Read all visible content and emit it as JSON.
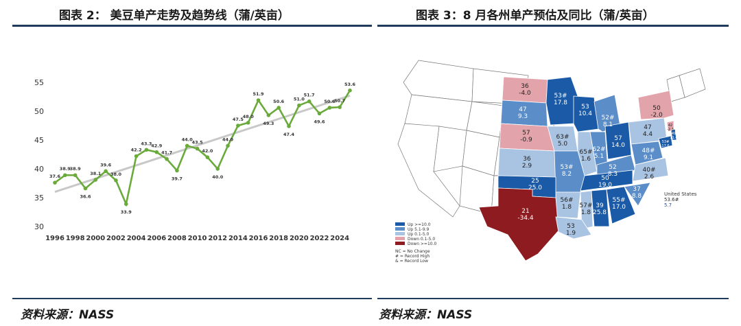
{
  "left_panel": {
    "title": "图表 2： 美豆单产走势及趋势线（蒲/英亩）",
    "source": "资料来源：NASS"
  },
  "right_panel": {
    "title": "图表 3：8 月各州单产预估及同比（蒲/英亩）",
    "source": "资料来源：NASS",
    "legend": [
      {
        "label": "Up >=10.0",
        "color": "#1b5aa6"
      },
      {
        "label": "Up 5.1-9.9",
        "color": "#5b8dc9"
      },
      {
        "label": "Up 0.1-5.0",
        "color": "#a9c3e3"
      },
      {
        "label": "Down 0.1-5.0",
        "color": "#e3a3ab"
      },
      {
        "label": "Down >=10.0",
        "color": "#8e1b1f"
      }
    ],
    "legend_notes": [
      "NC = No Change",
      "# = Record High",
      "& = Record Low"
    ],
    "national": {
      "label": "United States",
      "yield": "53.6#",
      "change": "5.7"
    },
    "states": [
      {
        "name": "North Dakota",
        "yield": "36",
        "change": "-4.0",
        "color": "#e3a3ab"
      },
      {
        "name": "Minnesota",
        "yield": "53#",
        "change": "17.8",
        "color": "#1b5aa6"
      },
      {
        "name": "Wisconsin",
        "yield": "53",
        "change": "10.4",
        "color": "#1b5aa6"
      },
      {
        "name": "Michigan",
        "yield": "52#",
        "change": "8.1",
        "color": "#5b8dc9"
      },
      {
        "name": "South Dakota",
        "yield": "47",
        "change": "9.3",
        "color": "#5b8dc9"
      },
      {
        "name": "Nebraska",
        "yield": "57",
        "change": "-0.9",
        "color": "#e3a3ab"
      },
      {
        "name": "Iowa",
        "yield": "63#",
        "change": "5.0",
        "color": "#a9c3e3"
      },
      {
        "name": "Illinois",
        "yield": "65#",
        "change": "1.6",
        "color": "#a9c3e3"
      },
      {
        "name": "Indiana",
        "yield": "62#",
        "change": "5.1",
        "color": "#5b8dc9"
      },
      {
        "name": "Ohio",
        "yield": "57",
        "change": "14.0",
        "color": "#1b5aa6"
      },
      {
        "name": "Pennsylvania",
        "yield": "47",
        "change": "4.4",
        "color": "#a9c3e3"
      },
      {
        "name": "New York",
        "yield": "50",
        "change": "-2.0",
        "color": "#e3a3ab"
      },
      {
        "name": "Kansas",
        "yield": "36",
        "change": "2.9",
        "color": "#a9c3e3"
      },
      {
        "name": "Missouri",
        "yield": "53#",
        "change": "8.2",
        "color": "#5b8dc9"
      },
      {
        "name": "Kentucky",
        "yield": "52",
        "change": "8.3",
        "color": "#5b8dc9"
      },
      {
        "name": "Virginia",
        "yield": "48#",
        "change": "9.1",
        "color": "#5b8dc9"
      },
      {
        "name": "North Carolina",
        "yield": "40#",
        "change": "2.6",
        "color": "#a9c3e3"
      },
      {
        "name": "Tennessee",
        "yield": "50",
        "change": "19.0",
        "color": "#1b5aa6"
      },
      {
        "name": "Arkansas",
        "yield": "56#",
        "change": "1.8",
        "color": "#a9c3e3"
      },
      {
        "name": "Oklahoma",
        "yield": "25",
        "change": "25.0",
        "color": "#1b5aa6"
      },
      {
        "name": "Texas",
        "yield": "21",
        "change": "-34.4",
        "color": "#8e1b1f"
      },
      {
        "name": "Mississippi",
        "yield": "57#",
        "change": "1.8",
        "color": "#a9c3e3"
      },
      {
        "name": "Alabama",
        "yield": "39",
        "change": "25.8",
        "color": "#1b5aa6"
      },
      {
        "name": "Georgia",
        "yield": "55#",
        "change": "17.0",
        "color": "#1b5aa6"
      },
      {
        "name": "South Carolina",
        "yield": "37",
        "change": "8.8",
        "color": "#5b8dc9"
      },
      {
        "name": "Louisiana",
        "yield": "53",
        "change": "1.9",
        "color": "#a9c3e3"
      },
      {
        "name": "Maryland",
        "yield": "53#",
        "change": "17.6",
        "color": "#1b5aa6"
      },
      {
        "name": "Delaware",
        "yield": "49",
        "change": "11.4",
        "color": "#1b5aa6"
      },
      {
        "name": "New Jersey",
        "yield": "42",
        "change": "-2.3",
        "color": "#e3a3ab"
      }
    ]
  },
  "chart_data": {
    "type": "line",
    "title": "",
    "xlabel": "",
    "ylabel": "",
    "x": [
      1996,
      1997,
      1998,
      1999,
      2000,
      2001,
      2002,
      2003,
      2004,
      2005,
      2006,
      2007,
      2008,
      2009,
      2010,
      2011,
      2012,
      2013,
      2014,
      2015,
      2016,
      2017,
      2018,
      2019,
      2020,
      2021,
      2022,
      2023,
      2024,
      2025
    ],
    "x_ticks": [
      "1996",
      "1998",
      "2000",
      "2002",
      "2004",
      "2006",
      "2008",
      "2010",
      "2012",
      "2014",
      "2016",
      "2018",
      "2020",
      "2022",
      "2024"
    ],
    "series": [
      {
        "values": [
          37.6,
          38.9,
          38.9,
          36.6,
          38.1,
          39.6,
          38.0,
          33.9,
          42.2,
          43.3,
          42.9,
          41.7,
          39.7,
          44.0,
          43.5,
          42.0,
          40.0,
          44.0,
          47.5,
          48.0,
          51.9,
          49.3,
          50.6,
          47.4,
          51.0,
          51.7,
          49.6,
          50.6,
          50.7,
          53.6
        ],
        "color": "#6aaa3a"
      }
    ],
    "trend_line": {
      "color": "#c8c8c8",
      "values": [
        36.0,
        52.7
      ]
    },
    "y_ticks": [
      30,
      35,
      40,
      45,
      50,
      55
    ],
    "ylim": [
      30,
      55
    ],
    "xlim": [
      1996,
      2025
    ],
    "grid": false,
    "legend": "none"
  }
}
